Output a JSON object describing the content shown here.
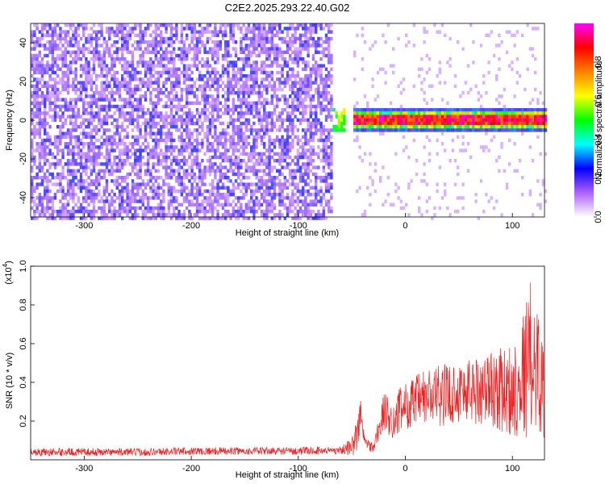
{
  "title": "C2E2.2025.293.22.40.G02",
  "chart_data": [
    {
      "type": "heatmap",
      "xlabel": "Height of straight line (km)",
      "ylabel": "Frequency (Hz)",
      "xlim": [
        -350,
        130
      ],
      "ylim": [
        -50,
        50
      ],
      "x_ticks": [
        -300,
        -200,
        -100,
        0,
        100
      ],
      "x_tick_labels": [
        "-300",
        "-200",
        "-100",
        "0",
        "100"
      ],
      "y_ticks": [
        -40,
        -20,
        0,
        20,
        40
      ],
      "y_tick_labels": [
        "-40",
        "-20",
        "0",
        "20",
        "40"
      ],
      "colorbar": {
        "label": "Normalized spectral amplitude",
        "range": [
          0,
          1
        ],
        "ticks": [
          0,
          0.2,
          0.4,
          0.6,
          0.8
        ],
        "tick_labels": [
          "0.0",
          "0.2",
          "0.4",
          "0.6",
          "0.8"
        ],
        "colormap": [
          "#ffffff",
          "#b060ff",
          "#0000ff",
          "#00ffff",
          "#00ff00",
          "#ffff00",
          "#ff8000",
          "#ff0000",
          "#ff00ff"
        ]
      },
      "features": {
        "noise_region_x": [
          -350,
          -70
        ],
        "gap_x": [
          -70,
          -50
        ],
        "signal_start_x": -70,
        "signal_band_y": [
          -3,
          5
        ],
        "signal_center_y": 1
      },
      "grid": false
    },
    {
      "type": "line",
      "xlabel": "Height of straight line (km)",
      "ylabel": "SNR (10 * v/v)",
      "y_multiplier_label": "(x10",
      "y_multiplier_exp": "4",
      "y_multiplier_close": ")",
      "xlim": [
        -350,
        130
      ],
      "ylim": [
        0,
        1.0
      ],
      "x_ticks": [
        -300,
        -200,
        -100,
        0,
        100
      ],
      "x_tick_labels": [
        "-300",
        "-200",
        "-100",
        "0",
        "100"
      ],
      "y_ticks": [
        0.2,
        0.4,
        0.6,
        0.8,
        1.0
      ],
      "y_tick_labels": [
        "0.2",
        "0.4",
        "0.6",
        "0.8",
        "1.0"
      ],
      "series": [
        {
          "color": "#ee2222",
          "x": [
            -350,
            -300,
            -250,
            -200,
            -150,
            -100,
            -60,
            -50,
            -45,
            -42,
            -40,
            -38,
            -35,
            -30,
            -25,
            -20,
            -15,
            -10,
            -5,
            0,
            10,
            20,
            30,
            40,
            50,
            60,
            70,
            80,
            90,
            100,
            105,
            110,
            115,
            120,
            125,
            130
          ],
          "y": [
            0.04,
            0.04,
            0.04,
            0.045,
            0.045,
            0.045,
            0.05,
            0.07,
            0.12,
            0.25,
            0.15,
            0.1,
            0.08,
            0.06,
            0.15,
            0.25,
            0.22,
            0.2,
            0.26,
            0.28,
            0.3,
            0.32,
            0.33,
            0.34,
            0.35,
            0.36,
            0.36,
            0.37,
            0.36,
            0.35,
            0.4,
            0.45,
            0.5,
            0.55,
            0.45,
            0.35
          ],
          "noise_amplitude": [
            0.02,
            0.02,
            0.02,
            0.02,
            0.02,
            0.02,
            0.02,
            0.05,
            0.1,
            0.08,
            0.06,
            0.04,
            0.03,
            0.03,
            0.08,
            0.1,
            0.1,
            0.1,
            0.12,
            0.12,
            0.14,
            0.16,
            0.16,
            0.16,
            0.16,
            0.18,
            0.18,
            0.2,
            0.22,
            0.25,
            0.28,
            0.32,
            0.4,
            0.42,
            0.3,
            0.3
          ]
        }
      ],
      "grid": false
    }
  ]
}
